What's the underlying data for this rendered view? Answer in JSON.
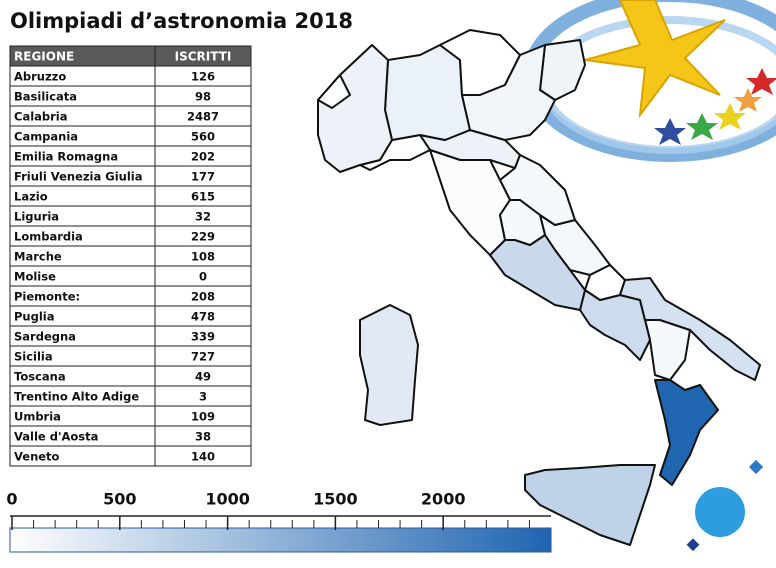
{
  "title": "Olimpiadi d’astronomia 2018",
  "table": {
    "headers": [
      "REGIONE",
      "ISCRITTI"
    ],
    "rows": [
      [
        "Abruzzo",
        126
      ],
      [
        "Basilicata",
        98
      ],
      [
        "Calabria",
        2487
      ],
      [
        "Campania",
        560
      ],
      [
        "Emilia Romagna",
        202
      ],
      [
        "Friuli Venezia Giulia",
        177
      ],
      [
        "Lazio",
        615
      ],
      [
        "Liguria",
        32
      ],
      [
        "Lombardia",
        229
      ],
      [
        "Marche",
        108
      ],
      [
        "Molise",
        0
      ],
      [
        "Piemonte:",
        208
      ],
      [
        "Puglia",
        478
      ],
      [
        "Sardegna",
        339
      ],
      [
        "Sicilia",
        727
      ],
      [
        "Toscana",
        49
      ],
      [
        "Trentino Alto Adige",
        3
      ],
      [
        "Umbria",
        109
      ],
      [
        "Valle d'Aosta",
        38
      ],
      [
        "Veneto",
        140
      ]
    ]
  },
  "scale": {
    "range": [
      0,
      2500
    ],
    "ticks": [
      0,
      500,
      1000,
      1500,
      2000
    ],
    "colors": [
      "#ffffff",
      "#1f64b0"
    ]
  }
}
